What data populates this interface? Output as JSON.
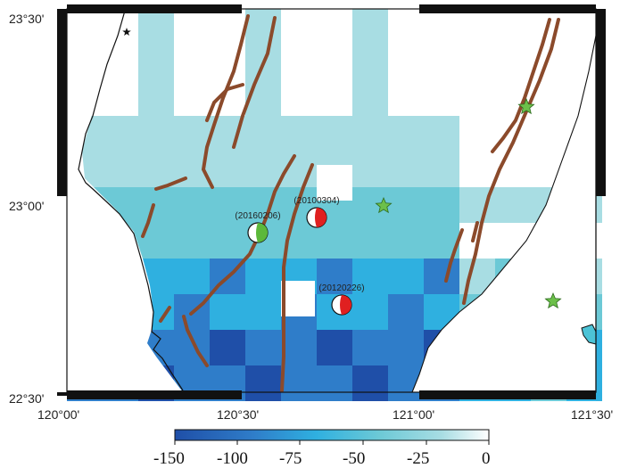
{
  "map": {
    "lat_labels": [
      "23°30'",
      "23°00'",
      "22°30'"
    ],
    "lon_labels": [
      "120°00'",
      "120°30'",
      "121°00'",
      "121°30'"
    ]
  },
  "colorbar": {
    "tick_labels": [
      "-150",
      "-100",
      "-75",
      "-50",
      "-25",
      "0"
    ],
    "colors": [
      "#1f4fa8",
      "#2f7dc9",
      "#2fb0e0",
      "#6cc9d6",
      "#a8dde3",
      "#ffffff"
    ]
  },
  "earthquakes": [
    {
      "label": "(20100304)",
      "color": "#e02020"
    },
    {
      "label": "(20160206)",
      "color": "#5cb83a"
    },
    {
      "label": "(20120226)",
      "color": "#e02020"
    }
  ],
  "stars": {
    "color": "#6cc04a",
    "count": 3
  },
  "fault_color": "#8b4a2b"
}
